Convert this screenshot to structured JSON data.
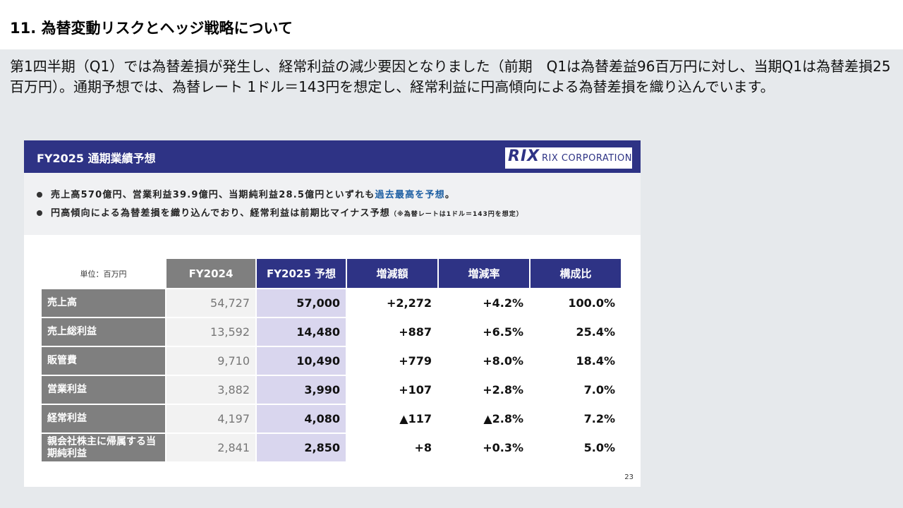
{
  "heading": "11. 為替変動リスクとヘッジ戦略について",
  "intro": "第1四半期（Q1）では為替差損が発生し、経常利益の減少要因となりました（前期　Q1は為替差益96百万円に対し、当期Q1は為替差損25百万円）。通期予想では、為替レート 1ドル＝143円を想定し、経常利益に円高傾向による為替差損を織り込んでいます。",
  "slide": {
    "title": "FY2025 通期業績予想",
    "logo_mark": "RIX",
    "logo_text": "RIX CORPORATION",
    "bullet1_main": "売上高570億円、営業利益39.9億円、当期純利益28.5億円といずれも",
    "bullet1_highlight": "過去最高を予想",
    "bullet1_end": "。",
    "bullet2_main": "円高傾向による為替差損を織り込んでおり、経常利益は前期比マイナス予想",
    "bullet2_note": "（※為替レートは1ドル＝143円を想定）",
    "page_number": "23"
  },
  "table": {
    "unit_label": "単位：百万円",
    "columns": [
      "FY2024",
      "FY2025 予想",
      "増減額",
      "増減率",
      "構成比"
    ],
    "rows": [
      {
        "label": "売上高",
        "fy2024": "54,727",
        "fy2025": "57,000",
        "diff": "+2,272",
        "rate": "+4.2%",
        "ratio": "100.0%"
      },
      {
        "label": "売上総利益",
        "fy2024": "13,592",
        "fy2025": "14,480",
        "diff": "+887",
        "rate": "+6.5%",
        "ratio": "25.4%"
      },
      {
        "label": "販管費",
        "fy2024": "9,710",
        "fy2025": "10,490",
        "diff": "+779",
        "rate": "+8.0%",
        "ratio": "18.4%"
      },
      {
        "label": "営業利益",
        "fy2024": "3,882",
        "fy2025": "3,990",
        "diff": "+107",
        "rate": "+2.8%",
        "ratio": "7.0%"
      },
      {
        "label": "経常利益",
        "fy2024": "4,197",
        "fy2025": "4,080",
        "diff": "▲117",
        "rate": "▲2.8%",
        "ratio": "7.2%"
      },
      {
        "label": "親会社株主に帰属する当期純利益",
        "fy2024": "2,841",
        "fy2025": "2,850",
        "diff": "+8",
        "rate": "+0.3%",
        "ratio": "5.0%"
      }
    ]
  }
}
